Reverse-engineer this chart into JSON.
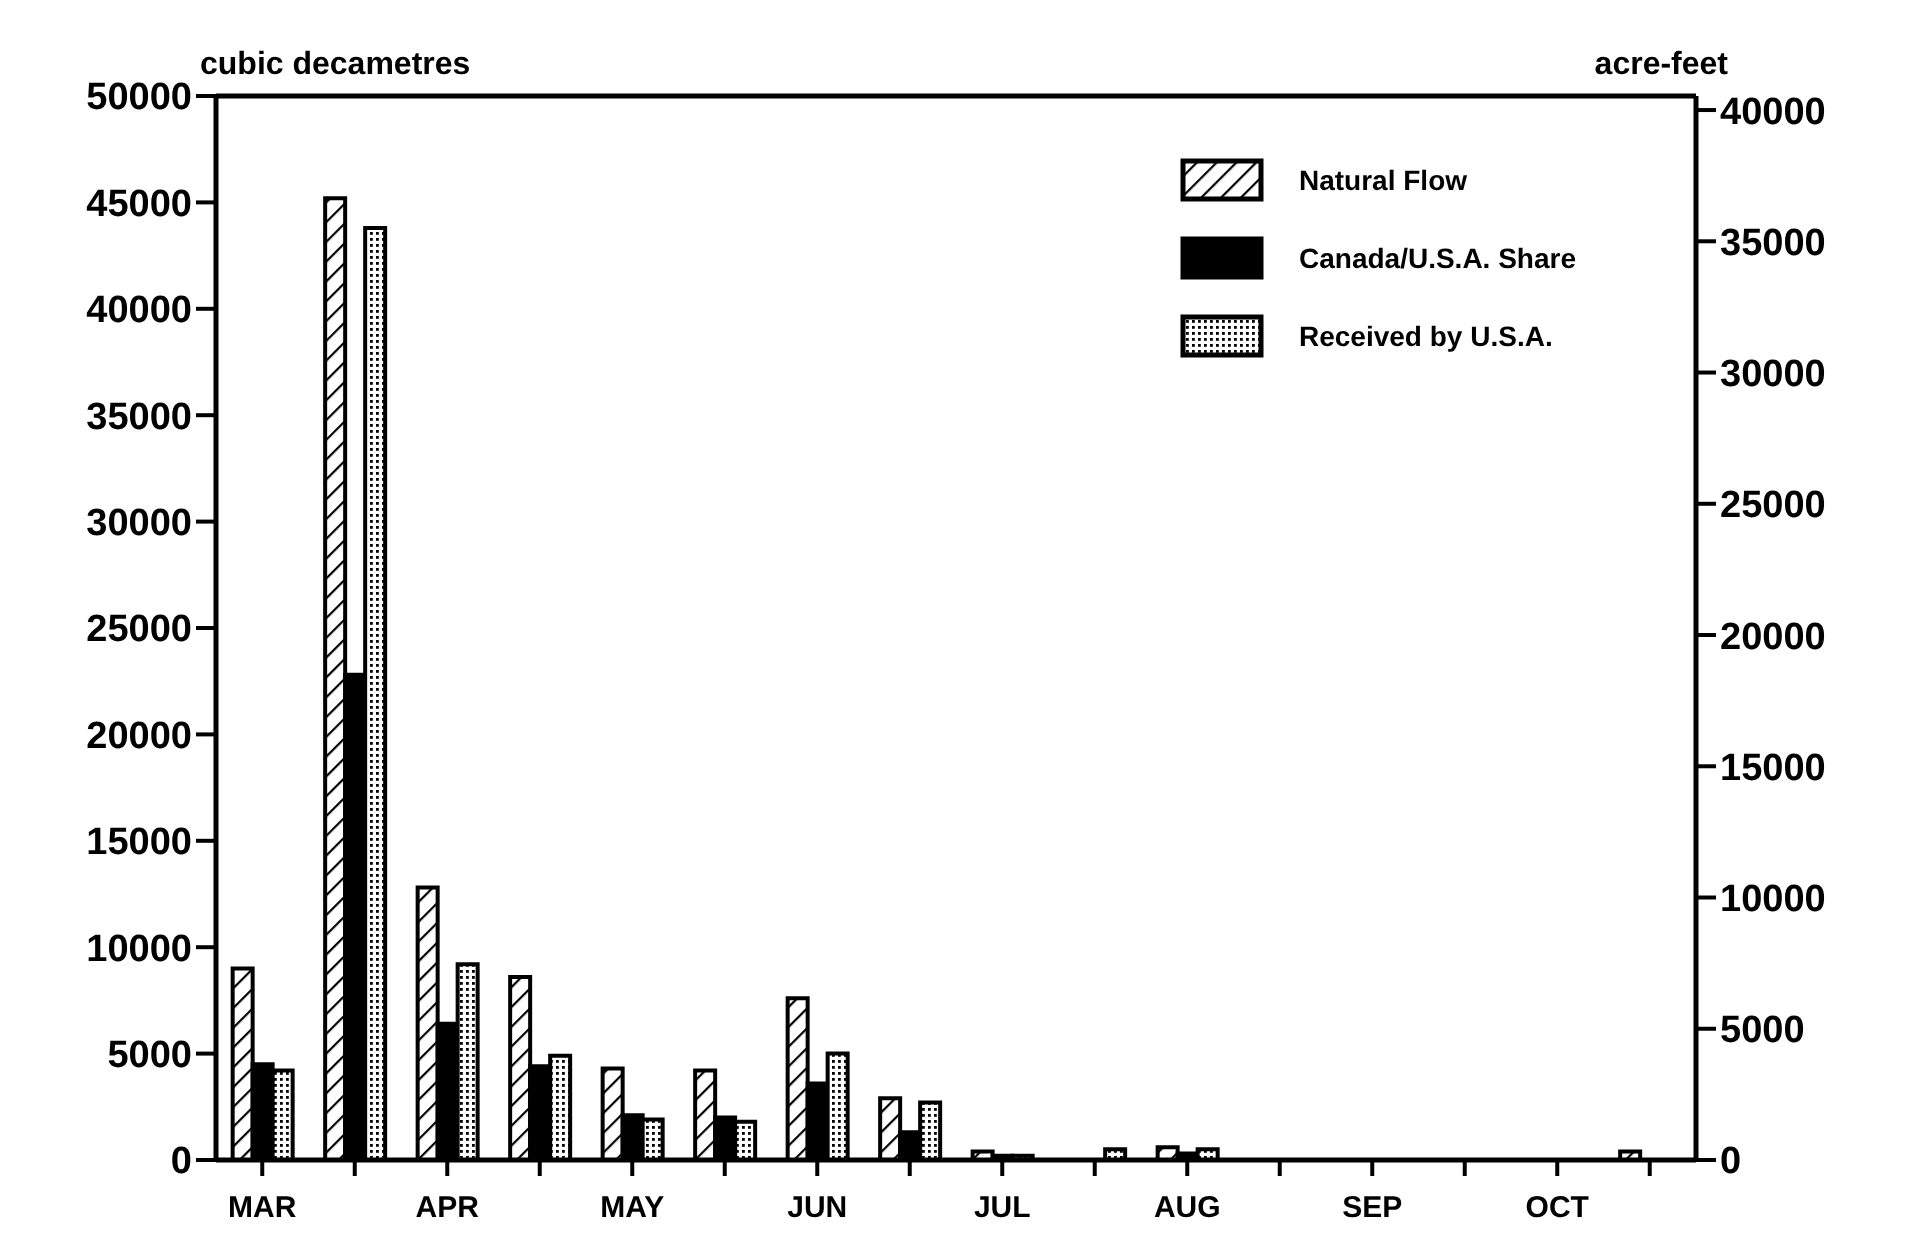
{
  "chart_data": {
    "type": "bar",
    "ylabel": "cubic decametres",
    "y2label": "acre-feet",
    "categories": [
      "MAR",
      null,
      "APR",
      null,
      "MAY",
      null,
      "JUN",
      null,
      "JUL",
      null,
      "AUG",
      null,
      "SEP",
      null,
      "OCT",
      null
    ],
    "series": [
      {
        "name": "Natural Flow",
        "color": "#000000",
        "values": [
          9000,
          45200,
          12800,
          8600,
          4300,
          4200,
          7600,
          2900,
          400,
          null,
          600,
          null,
          0,
          0,
          null,
          400
        ]
      },
      {
        "name": "Canada/U.S.A. Share",
        "color": "#000000",
        "values": [
          4500,
          22800,
          6400,
          4400,
          2100,
          2000,
          3600,
          1300,
          200,
          0,
          300,
          0,
          0,
          0,
          0,
          null
        ]
      },
      {
        "name": "Received by U.S.A.",
        "color": "#000000",
        "values": [
          4200,
          43800,
          9200,
          4900,
          1900,
          1800,
          5000,
          2700,
          200,
          500,
          500,
          0,
          0,
          0,
          0,
          0
        ]
      }
    ],
    "ylim": [
      0,
      50000
    ],
    "yticks": [
      0,
      5000,
      10000,
      15000,
      20000,
      25000,
      30000,
      35000,
      40000,
      45000,
      50000
    ],
    "y2lim": [
      0,
      40535
    ],
    "y2ticks": [
      0,
      5000,
      10000,
      15000,
      20000,
      25000,
      30000,
      35000,
      40000
    ],
    "grid": false,
    "legend": "top right"
  }
}
